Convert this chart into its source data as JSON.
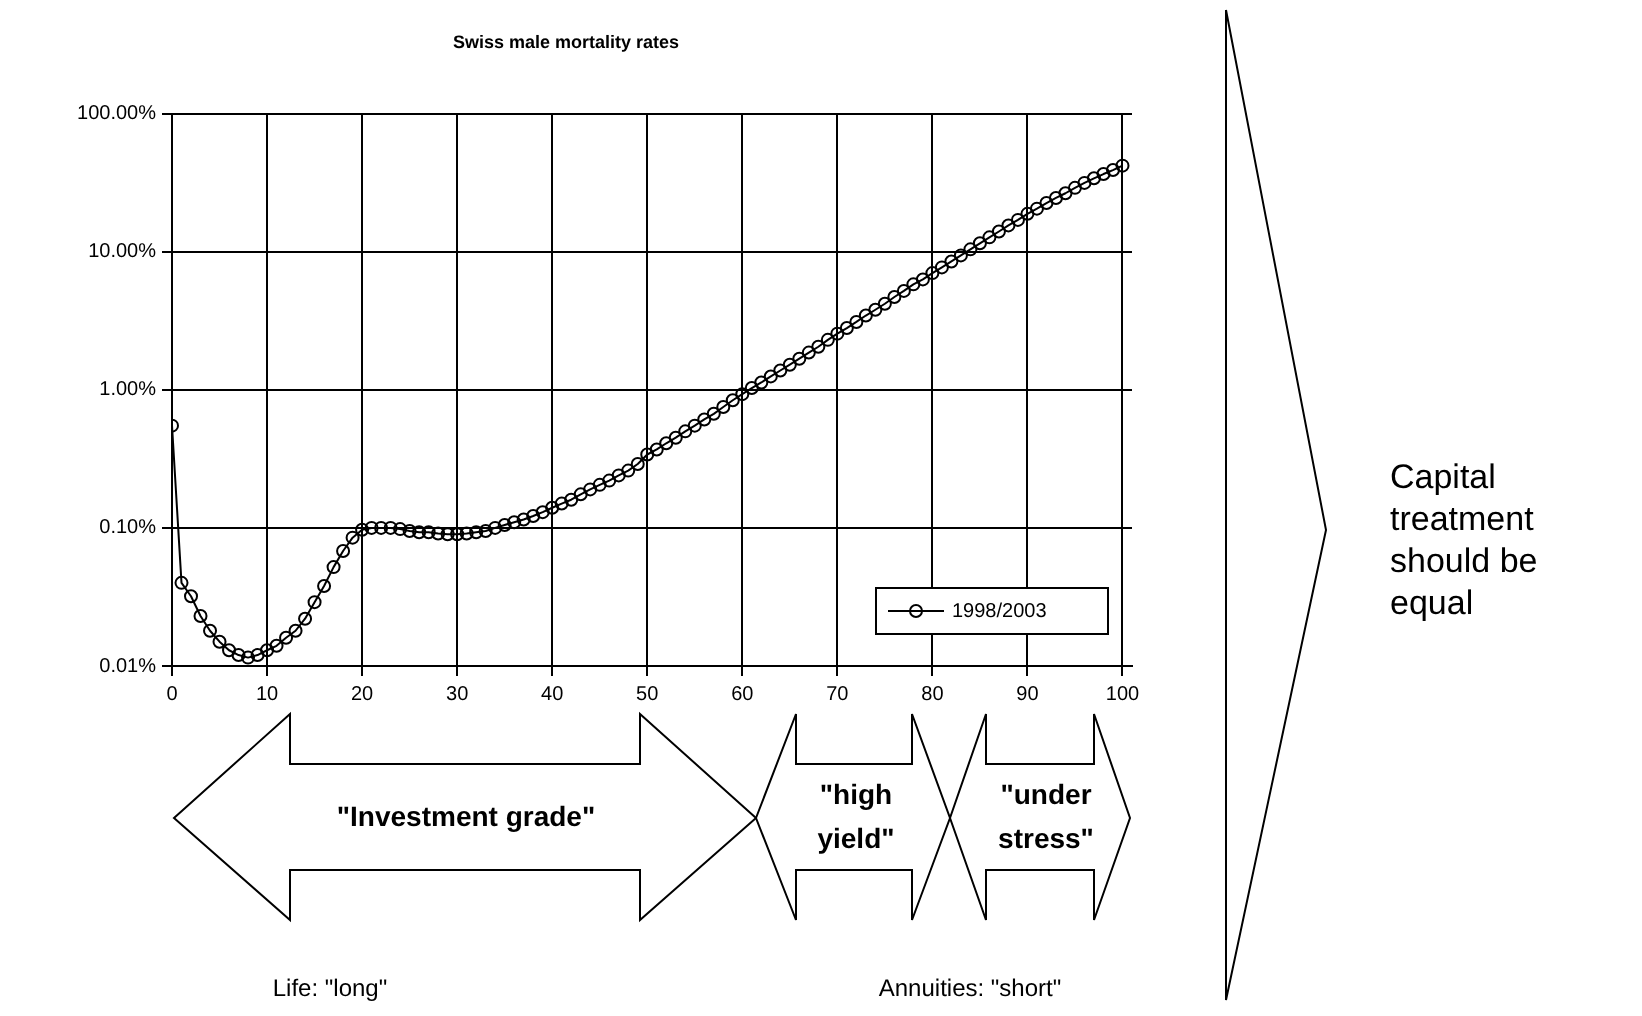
{
  "chart_data": {
    "type": "line",
    "title": "Swiss male mortality rates",
    "x": [
      0,
      1,
      2,
      3,
      4,
      5,
      6,
      7,
      8,
      9,
      10,
      11,
      12,
      13,
      14,
      15,
      16,
      17,
      18,
      19,
      20,
      21,
      22,
      23,
      24,
      25,
      26,
      27,
      28,
      29,
      30,
      31,
      32,
      33,
      34,
      35,
      36,
      37,
      38,
      39,
      40,
      41,
      42,
      43,
      44,
      45,
      46,
      47,
      48,
      49,
      50,
      51,
      52,
      53,
      54,
      55,
      56,
      57,
      58,
      59,
      60,
      61,
      62,
      63,
      64,
      65,
      66,
      67,
      68,
      69,
      70,
      71,
      72,
      73,
      74,
      75,
      76,
      77,
      78,
      79,
      80,
      81,
      82,
      83,
      84,
      85,
      86,
      87,
      88,
      89,
      90,
      91,
      92,
      93,
      94,
      95,
      96,
      97,
      98,
      99,
      100
    ],
    "series": [
      {
        "name": "1998/2003",
        "color": "#000000",
        "values": [
          0.55,
          0.04,
          0.032,
          0.023,
          0.018,
          0.015,
          0.013,
          0.012,
          0.0115,
          0.012,
          0.013,
          0.014,
          0.016,
          0.018,
          0.022,
          0.029,
          0.038,
          0.052,
          0.068,
          0.085,
          0.097,
          0.1,
          0.1,
          0.1,
          0.098,
          0.095,
          0.093,
          0.093,
          0.091,
          0.09,
          0.09,
          0.091,
          0.093,
          0.095,
          0.1,
          0.105,
          0.11,
          0.115,
          0.122,
          0.13,
          0.14,
          0.15,
          0.16,
          0.175,
          0.19,
          0.205,
          0.22,
          0.24,
          0.26,
          0.29,
          0.34,
          0.37,
          0.41,
          0.45,
          0.5,
          0.55,
          0.61,
          0.67,
          0.75,
          0.84,
          0.93,
          1.03,
          1.13,
          1.25,
          1.38,
          1.52,
          1.68,
          1.86,
          2.05,
          2.3,
          2.55,
          2.8,
          3.1,
          3.45,
          3.8,
          4.2,
          4.7,
          5.2,
          5.8,
          6.3,
          7.0,
          7.7,
          8.5,
          9.4,
          10.4,
          11.5,
          12.7,
          14,
          15.5,
          17,
          18.8,
          20.5,
          22.5,
          24.5,
          26.5,
          29,
          31.5,
          34,
          36.5,
          39,
          42
        ]
      }
    ],
    "xlim": [
      0,
      101
    ],
    "xticks": [
      0,
      10,
      20,
      30,
      40,
      50,
      60,
      70,
      80,
      90,
      100
    ],
    "ylim": [
      0.01,
      100
    ],
    "yticks": [
      {
        "value": 0.01,
        "label": "0.01%"
      },
      {
        "value": 0.1,
        "label": "0.10%"
      },
      {
        "value": 1,
        "label": "1.00%"
      },
      {
        "value": 10,
        "label": "10.00%"
      },
      {
        "value": 100,
        "label": "100.00%"
      }
    ],
    "log": "y",
    "grid": true,
    "legend": "bottom right",
    "marker": "circle",
    "line_style": "solid",
    "annotations": [
      "\"Investment grade\"",
      "\"high yield\"",
      "\"under stress\"",
      "Life: \"long\"",
      "Annuities: \"short\"",
      "Capital treatment should be equal"
    ]
  }
}
